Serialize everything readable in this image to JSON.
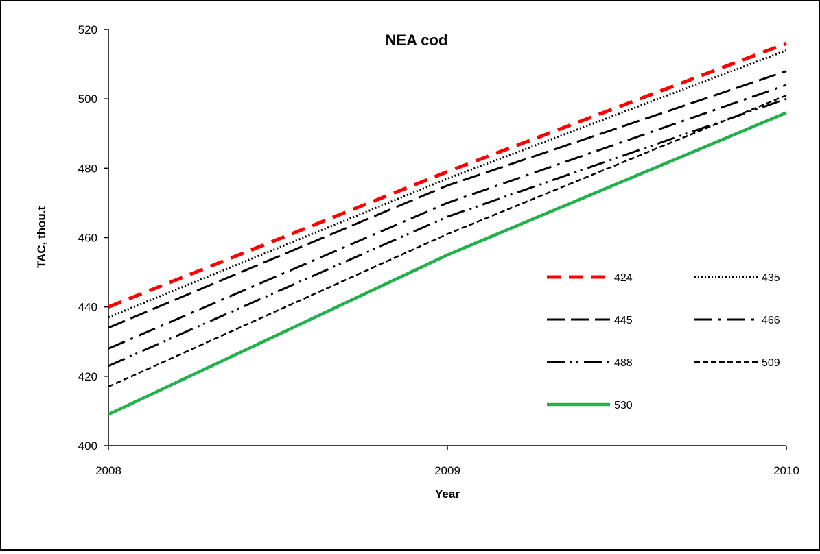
{
  "chart_data": {
    "type": "line",
    "title": "NEA cod",
    "xlabel": "Year",
    "ylabel": "TAC, thou.t",
    "x": [
      2008,
      2009,
      2010
    ],
    "xlim": [
      2008,
      2010
    ],
    "ylim": [
      400,
      520
    ],
    "yticks": [
      400,
      420,
      440,
      460,
      480,
      500,
      520
    ],
    "legend_position": "right-center",
    "grid": false,
    "series": [
      {
        "name": "424",
        "values": [
          440,
          479,
          516
        ],
        "color": "#ff0000",
        "style": "dash-thick"
      },
      {
        "name": "435",
        "values": [
          437,
          477,
          514
        ],
        "color": "#000000",
        "style": "dotted"
      },
      {
        "name": "445",
        "values": [
          434,
          475,
          508
        ],
        "color": "#000000",
        "style": "long-dash"
      },
      {
        "name": "466",
        "values": [
          428,
          470,
          504
        ],
        "color": "#000000",
        "style": "dash-dot"
      },
      {
        "name": "488",
        "values": [
          423,
          466,
          500
        ],
        "color": "#000000",
        "style": "dash-dot-dot"
      },
      {
        "name": "509",
        "values": [
          417,
          461,
          501
        ],
        "color": "#000000",
        "style": "short-dash"
      },
      {
        "name": "530",
        "values": [
          409,
          455,
          496
        ],
        "color": "#22b14c",
        "style": "solid"
      }
    ]
  }
}
